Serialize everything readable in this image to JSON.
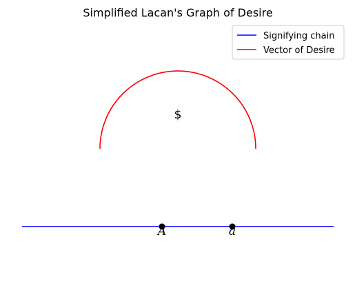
{
  "title": "Simplified Lacan's Graph of Desire",
  "legend": {
    "position": "top-right",
    "items": [
      {
        "label": "Signifying chain",
        "color": "#0000ff"
      },
      {
        "label": "Vector of Desire",
        "color": "#ff0000"
      }
    ]
  },
  "labels": {
    "subject": "$",
    "point_a_upper": "A",
    "point_a_lower": "a"
  },
  "colors": {
    "chain": "#0000ff",
    "desire": "#ff0000",
    "points": "#000000"
  }
}
